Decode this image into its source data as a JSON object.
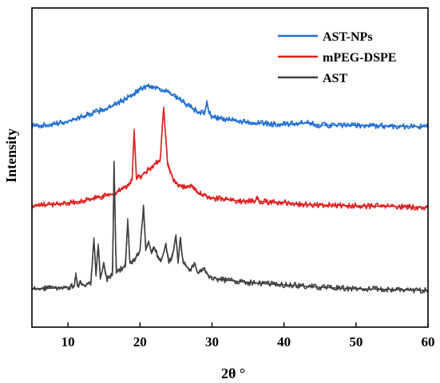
{
  "chart_data": {
    "type": "line",
    "title": "",
    "xlabel": "2θ °",
    "ylabel": "Intensity",
    "xlim": [
      5,
      60
    ],
    "y_ticks_shown": false,
    "grid": false,
    "x_ticks": [
      10,
      20,
      30,
      40,
      50,
      60
    ],
    "legend": {
      "position": "top-right",
      "entries": [
        "AST-NPs",
        "mPEG-DSPE",
        "AST"
      ]
    },
    "series": [
      {
        "name": "AST-NPs",
        "color": "#1f6fd6",
        "baseline": 0.63,
        "points": [
          [
            5,
            0.63
          ],
          [
            8,
            0.635
          ],
          [
            10,
            0.645
          ],
          [
            12,
            0.66
          ],
          [
            14,
            0.675
          ],
          [
            16,
            0.69
          ],
          [
            18,
            0.715
          ],
          [
            19,
            0.73
          ],
          [
            20,
            0.745
          ],
          [
            21,
            0.755
          ],
          [
            22,
            0.753
          ],
          [
            23,
            0.745
          ],
          [
            24,
            0.735
          ],
          [
            25,
            0.72
          ],
          [
            26,
            0.705
          ],
          [
            27,
            0.69
          ],
          [
            28,
            0.675
          ],
          [
            29.0,
            0.67
          ],
          [
            29.3,
            0.71
          ],
          [
            29.6,
            0.67
          ],
          [
            30,
            0.66
          ],
          [
            32,
            0.65
          ],
          [
            34,
            0.645
          ],
          [
            36,
            0.64
          ],
          [
            40,
            0.635
          ],
          [
            43,
            0.64
          ],
          [
            45,
            0.633
          ],
          [
            50,
            0.632
          ],
          [
            55,
            0.63
          ],
          [
            60,
            0.628
          ]
        ]
      },
      {
        "name": "mPEG-DSPE",
        "color": "#e02020",
        "baseline": 0.38,
        "points": [
          [
            5,
            0.38
          ],
          [
            8,
            0.385
          ],
          [
            10,
            0.39
          ],
          [
            12,
            0.395
          ],
          [
            14,
            0.405
          ],
          [
            16,
            0.415
          ],
          [
            17,
            0.425
          ],
          [
            18,
            0.44
          ],
          [
            18.9,
            0.46
          ],
          [
            19.2,
            0.62
          ],
          [
            19.5,
            0.47
          ],
          [
            20,
            0.47
          ],
          [
            21,
            0.49
          ],
          [
            22,
            0.51
          ],
          [
            22.8,
            0.52
          ],
          [
            23.3,
            0.69
          ],
          [
            23.8,
            0.52
          ],
          [
            24.5,
            0.47
          ],
          [
            25,
            0.45
          ],
          [
            26,
            0.44
          ],
          [
            27,
            0.445
          ],
          [
            28,
            0.42
          ],
          [
            30,
            0.405
          ],
          [
            32,
            0.4
          ],
          [
            34,
            0.395
          ],
          [
            36.0,
            0.395
          ],
          [
            36.3,
            0.41
          ],
          [
            36.6,
            0.395
          ],
          [
            38,
            0.39
          ],
          [
            40,
            0.392
          ],
          [
            42,
            0.385
          ],
          [
            45,
            0.383
          ],
          [
            50,
            0.38
          ],
          [
            55,
            0.378
          ],
          [
            60,
            0.375
          ]
        ]
      },
      {
        "name": "AST",
        "color": "#404040",
        "baseline": 0.12,
        "points": [
          [
            5,
            0.12
          ],
          [
            8,
            0.122
          ],
          [
            10,
            0.125
          ],
          [
            10.9,
            0.13
          ],
          [
            11.1,
            0.17
          ],
          [
            11.3,
            0.13
          ],
          [
            11.8,
            0.14
          ],
          [
            12.3,
            0.13
          ],
          [
            13.2,
            0.14
          ],
          [
            13.6,
            0.28
          ],
          [
            13.9,
            0.16
          ],
          [
            14.2,
            0.26
          ],
          [
            14.5,
            0.15
          ],
          [
            15.0,
            0.2
          ],
          [
            15.4,
            0.15
          ],
          [
            16.2,
            0.17
          ],
          [
            16.4,
            0.52
          ],
          [
            16.7,
            0.17
          ],
          [
            17.2,
            0.18
          ],
          [
            18.0,
            0.19
          ],
          [
            18.3,
            0.34
          ],
          [
            18.6,
            0.2
          ],
          [
            19.5,
            0.22
          ],
          [
            20.0,
            0.24
          ],
          [
            20.5,
            0.38
          ],
          [
            20.8,
            0.24
          ],
          [
            21.2,
            0.27
          ],
          [
            21.6,
            0.23
          ],
          [
            22.0,
            0.25
          ],
          [
            22.5,
            0.22
          ],
          [
            23.0,
            0.21
          ],
          [
            23.6,
            0.26
          ],
          [
            24.0,
            0.2
          ],
          [
            24.5,
            0.22
          ],
          [
            25.0,
            0.29
          ],
          [
            25.3,
            0.2
          ],
          [
            25.6,
            0.28
          ],
          [
            26.0,
            0.2
          ],
          [
            27.0,
            0.18
          ],
          [
            27.6,
            0.2
          ],
          [
            28.0,
            0.17
          ],
          [
            29.0,
            0.18
          ],
          [
            29.5,
            0.16
          ],
          [
            31,
            0.15
          ],
          [
            33,
            0.145
          ],
          [
            35,
            0.14
          ],
          [
            38,
            0.135
          ],
          [
            42,
            0.13
          ],
          [
            45,
            0.125
          ],
          [
            50,
            0.12
          ],
          [
            55,
            0.118
          ],
          [
            60,
            0.115
          ]
        ]
      }
    ]
  }
}
